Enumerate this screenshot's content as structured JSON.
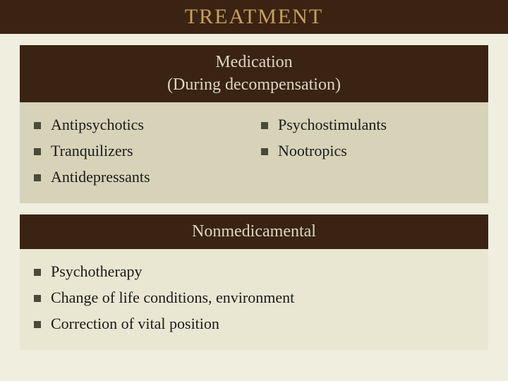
{
  "title": "TREATMENT",
  "colors": {
    "page_bg": "#efeedf",
    "header_bg": "#3a2312",
    "title_color": "#c9a05a",
    "section_heading_color": "#ddd7c0",
    "body_bg_dark": "#d6d3b8",
    "body_bg_light": "#e9e7d2",
    "bullet_color": "#4a4a3a",
    "text_color": "#1a1a1a"
  },
  "typography": {
    "title_fontsize": 30,
    "heading_fontsize": 24,
    "item_fontsize": 22,
    "font_family": "Georgia, serif"
  },
  "sections": [
    {
      "heading_line1": "Medication",
      "heading_line2": "(During decompensation)",
      "body_shade": "dark",
      "columns": [
        {
          "items": [
            "Antipsychotics",
            "Tranquilizers",
            "Antidepressants"
          ]
        },
        {
          "items": [
            "Psychostimulants",
            "Nootropics"
          ]
        }
      ]
    },
    {
      "heading_line1": "Nonmedicamental",
      "body_shade": "light",
      "columns": [
        {
          "items": [
            "Psychotherapy",
            "Change of life conditions, environment",
            "Correction of vital position"
          ]
        }
      ]
    }
  ]
}
